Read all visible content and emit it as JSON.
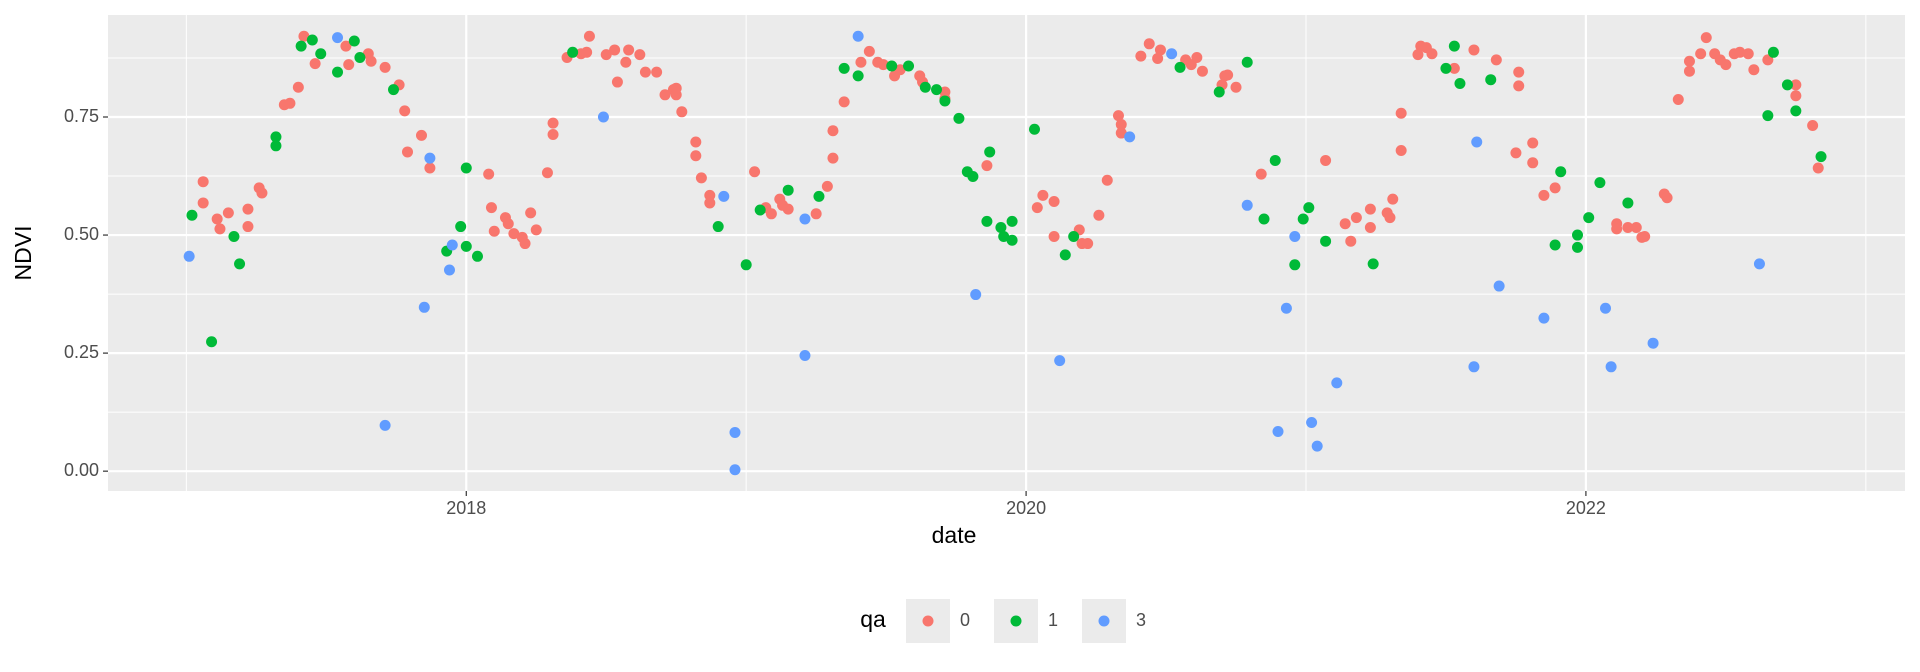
{
  "chart_data": {
    "type": "scatter",
    "x_label": "date",
    "y_label": "NDVI",
    "legend_title": "qa",
    "legend": "bottom",
    "grid": true,
    "xlim": [
      2016.72,
      2023.14
    ],
    "xticks": [
      2018,
      2020,
      2022
    ],
    "ylim": [
      -0.042,
      0.966
    ],
    "yticks": [
      {
        "value": 0,
        "label": "0.00"
      },
      0.25,
      {
        "value": 0.5,
        "label": "0.50"
      },
      0.75
    ],
    "series": [
      {
        "name": "0",
        "color": "#F8766D",
        "x": [
          2017.06,
          2017.06,
          2017.11,
          2017.12,
          2017.15,
          2017.22,
          2017.22,
          2017.26,
          2017.27,
          2017.35,
          2017.37,
          2017.4,
          2017.42,
          2017.46,
          2017.57,
          2017.58,
          2017.65,
          2017.66,
          2017.71,
          2017.76,
          2017.78,
          2017.79,
          2017.84,
          2017.87,
          2018.08,
          2018.09,
          2018.1,
          2018.14,
          2018.15,
          2018.17,
          2018.2,
          2018.21,
          2018.23,
          2018.25,
          2018.29,
          2018.31,
          2018.31,
          2018.36,
          2018.41,
          2018.43,
          2018.44,
          2018.5,
          2018.53,
          2018.54,
          2018.58,
          2018.57,
          2018.62,
          2018.64,
          2018.68,
          2018.71,
          2018.74,
          2018.75,
          2018.75,
          2018.77,
          2018.82,
          2018.82,
          2018.84,
          2018.87,
          2018.87,
          2019.03,
          2019.07,
          2019.09,
          2019.12,
          2019.13,
          2019.15,
          2019.25,
          2019.29,
          2019.31,
          2019.31,
          2019.35,
          2019.41,
          2019.44,
          2019.47,
          2019.49,
          2019.53,
          2019.55,
          2019.62,
          2019.63,
          2019.71,
          2019.71,
          2019.86,
          2020.04,
          2020.06,
          2020.1,
          2020.1,
          2020.19,
          2020.2,
          2020.22,
          2020.26,
          2020.29,
          2020.33,
          2020.34,
          2020.34,
          2020.41,
          2020.44,
          2020.47,
          2020.48,
          2020.57,
          2020.59,
          2020.61,
          2020.63,
          2020.7,
          2020.71,
          2020.72,
          2020.75,
          2020.84,
          2021.07,
          2021.14,
          2021.16,
          2021.18,
          2021.23,
          2021.23,
          2021.29,
          2021.3,
          2021.31,
          2021.34,
          2021.34,
          2021.4,
          2021.41,
          2021.43,
          2021.45,
          2021.53,
          2021.6,
          2021.68,
          2021.75,
          2021.76,
          2021.76,
          2021.81,
          2021.81,
          2021.85,
          2021.89,
          2022.11,
          2022.11,
          2022.15,
          2022.18,
          2022.2,
          2022.21,
          2022.28,
          2022.29,
          2022.33,
          2022.37,
          2022.37,
          2022.41,
          2022.43,
          2022.46,
          2022.48,
          2022.5,
          2022.53,
          2022.55,
          2022.58,
          2022.6,
          2022.65,
          2022.75,
          2022.75,
          2022.81,
          2022.83
        ],
        "values": [
          0.613,
          0.568,
          0.534,
          0.513,
          0.547,
          0.555,
          0.518,
          0.6,
          0.589,
          0.776,
          0.779,
          0.813,
          0.921,
          0.863,
          0.9,
          0.861,
          0.884,
          0.868,
          0.855,
          0.818,
          0.763,
          0.676,
          0.711,
          0.642,
          0.629,
          0.558,
          0.508,
          0.537,
          0.524,
          0.503,
          0.495,
          0.482,
          0.547,
          0.511,
          0.632,
          0.737,
          0.713,
          0.876,
          0.884,
          0.887,
          0.921,
          0.882,
          0.892,
          0.824,
          0.892,
          0.866,
          0.882,
          0.845,
          0.845,
          0.797,
          0.808,
          0.797,
          0.811,
          0.761,
          0.697,
          0.668,
          0.621,
          0.584,
          0.568,
          0.634,
          0.558,
          0.545,
          0.576,
          0.563,
          0.555,
          0.545,
          0.603,
          0.663,
          0.721,
          0.782,
          0.866,
          0.889,
          0.866,
          0.861,
          0.837,
          0.85,
          0.837,
          0.824,
          0.803,
          0.789,
          0.647,
          0.558,
          0.584,
          0.571,
          0.497,
          0.511,
          0.482,
          0.482,
          0.542,
          0.616,
          0.753,
          0.734,
          0.716,
          0.879,
          0.905,
          0.874,
          0.892,
          0.871,
          0.861,
          0.876,
          0.847,
          0.818,
          0.837,
          0.839,
          0.813,
          0.629,
          0.658,
          0.524,
          0.487,
          0.537,
          0.555,
          0.516,
          0.547,
          0.537,
          0.576,
          0.679,
          0.758,
          0.882,
          0.9,
          0.897,
          0.884,
          0.853,
          0.892,
          0.871,
          0.674,
          0.845,
          0.816,
          0.695,
          0.653,
          0.584,
          0.6,
          0.524,
          0.513,
          0.516,
          0.516,
          0.495,
          0.497,
          0.587,
          0.579,
          0.787,
          0.868,
          0.847,
          0.884,
          0.918,
          0.884,
          0.871,
          0.861,
          0.884,
          0.887,
          0.884,
          0.85,
          0.871,
          0.818,
          0.795,
          0.732,
          0.642
        ]
      },
      {
        "name": "1",
        "color": "#00BA38",
        "x": [
          2017.02,
          2017.09,
          2017.17,
          2017.19,
          2017.32,
          2017.32,
          2017.41,
          2017.45,
          2017.48,
          2017.54,
          2017.6,
          2017.62,
          2017.74,
          2017.93,
          2017.98,
          2018.0,
          2018.0,
          2018.04,
          2018.38,
          2018.9,
          2019.0,
          2019.05,
          2019.15,
          2019.26,
          2019.35,
          2019.4,
          2019.52,
          2019.58,
          2019.64,
          2019.68,
          2019.71,
          2019.76,
          2019.79,
          2019.81,
          2019.87,
          2019.86,
          2019.91,
          2019.92,
          2019.95,
          2019.95,
          2020.03,
          2020.14,
          2020.17,
          2020.55,
          2020.69,
          2020.79,
          2020.85,
          2020.89,
          2020.96,
          2020.99,
          2021.01,
          2021.07,
          2021.24,
          2021.5,
          2021.53,
          2021.55,
          2021.66,
          2021.89,
          2021.91,
          2021.97,
          2021.97,
          2022.01,
          2022.05,
          2022.15,
          2022.65,
          2022.67,
          2022.72,
          2022.75,
          2022.84
        ],
        "values": [
          0.542,
          0.274,
          0.497,
          0.439,
          0.708,
          0.689,
          0.9,
          0.913,
          0.884,
          0.845,
          0.911,
          0.876,
          0.808,
          0.466,
          0.518,
          0.642,
          0.476,
          0.455,
          0.887,
          0.518,
          0.437,
          0.553,
          0.595,
          0.582,
          0.853,
          0.837,
          0.858,
          0.858,
          0.813,
          0.808,
          0.784,
          0.747,
          0.634,
          0.624,
          0.676,
          0.529,
          0.516,
          0.497,
          0.489,
          0.529,
          0.724,
          0.458,
          0.497,
          0.855,
          0.803,
          0.866,
          0.534,
          0.658,
          0.437,
          0.534,
          0.558,
          0.487,
          0.439,
          0.853,
          0.9,
          0.821,
          0.829,
          0.479,
          0.634,
          0.474,
          0.5,
          0.537,
          0.611,
          0.568,
          0.753,
          0.887,
          0.818,
          0.763,
          0.666
        ]
      },
      {
        "name": "3",
        "color": "#619CFF",
        "x": [
          2017.01,
          2017.54,
          2017.71,
          2017.85,
          2017.87,
          2017.94,
          2017.95,
          2018.49,
          2018.92,
          2018.96,
          2018.96,
          2019.21,
          2019.21,
          2019.4,
          2019.82,
          2020.12,
          2020.37,
          2020.52,
          2020.79,
          2020.9,
          2020.93,
          2020.96,
          2021.02,
          2021.04,
          2021.11,
          2021.6,
          2021.61,
          2021.69,
          2021.85,
          2022.07,
          2022.09,
          2022.24,
          2022.62
        ],
        "values": [
          0.455,
          0.918,
          0.097,
          0.347,
          0.663,
          0.426,
          0.479,
          0.75,
          0.582,
          0.082,
          0.003,
          0.534,
          0.245,
          0.921,
          0.374,
          0.234,
          0.708,
          0.884,
          0.563,
          0.084,
          0.345,
          0.497,
          0.103,
          0.053,
          0.187,
          0.221,
          0.697,
          0.392,
          0.324,
          0.345,
          0.221,
          0.271,
          0.439
        ]
      }
    ]
  }
}
